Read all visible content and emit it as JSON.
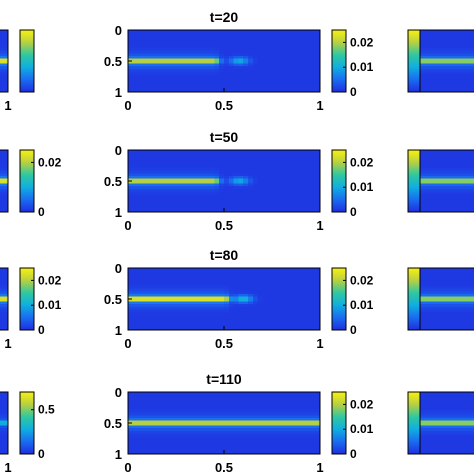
{
  "chart_data": [
    {
      "type": "heatmap",
      "position": "left",
      "colorbar": {
        "ticks": [],
        "range": [
          0,
          0.025
        ]
      },
      "x_ticks": [
        "1"
      ],
      "y_ticks": [],
      "field": {
        "band_center": 0.5,
        "front_x": 1.0,
        "peak": 0.025
      }
    },
    {
      "type": "heatmap",
      "title": "t=20",
      "x_ticks": [
        "0",
        "0.5",
        "1"
      ],
      "y_ticks": [
        "0",
        "0.5",
        "1"
      ],
      "xlim": [
        0,
        1
      ],
      "ylim": [
        0,
        1
      ],
      "colorbar": {
        "ticks": [
          "0.02",
          "0.01",
          "0"
        ],
        "tick_values": [
          0.02,
          0.01,
          0
        ],
        "range": [
          0,
          0.025
        ]
      },
      "field": {
        "band_center": 0.5,
        "front_x": 0.45,
        "blob_x": 0.58,
        "peak": 0.022
      }
    },
    {
      "type": "heatmap",
      "position": "right",
      "colorbar": {
        "ticks": [],
        "range": [
          0,
          0.025
        ]
      },
      "x_ticks": [],
      "y_ticks": [],
      "field": {
        "band_center": 0.5,
        "front_x": 0.3,
        "peak": 0.02
      }
    },
    {
      "type": "heatmap",
      "position": "left",
      "colorbar": {
        "ticks": [
          "0.02",
          "0"
        ],
        "tick_values": [
          0.02,
          0
        ],
        "range": [
          0,
          0.025
        ]
      },
      "x_ticks": [],
      "y_ticks": [],
      "field": {
        "band_center": 0.5,
        "front_x": 1.0,
        "peak": 0.025
      }
    },
    {
      "type": "heatmap",
      "title": "t=50",
      "x_ticks": [
        "0",
        "0.5",
        "1"
      ],
      "y_ticks": [
        "0",
        "0.5",
        "1"
      ],
      "xlim": [
        0,
        1
      ],
      "ylim": [
        0,
        1
      ],
      "colorbar": {
        "ticks": [
          "0.02",
          "0.01",
          "0"
        ],
        "tick_values": [
          0.02,
          0.01,
          0
        ],
        "range": [
          0,
          0.025
        ]
      },
      "field": {
        "band_center": 0.5,
        "front_x": 0.45,
        "blob_x": 0.58,
        "peak": 0.022
      }
    },
    {
      "type": "heatmap",
      "position": "right",
      "colorbar": {
        "ticks": [],
        "range": [
          0,
          0.025
        ]
      },
      "x_ticks": [],
      "y_ticks": [],
      "field": {
        "band_center": 0.5,
        "front_x": 0.3,
        "peak": 0.02
      }
    },
    {
      "type": "heatmap",
      "position": "left",
      "colorbar": {
        "ticks": [
          "0.02",
          "0.01",
          "0"
        ],
        "tick_values": [
          0.02,
          0.01,
          0
        ],
        "range": [
          0,
          0.025
        ]
      },
      "x_ticks": [
        "1"
      ],
      "y_ticks": [],
      "field": {
        "band_center": 0.5,
        "front_x": 1.0,
        "peak": 0.025
      }
    },
    {
      "type": "heatmap",
      "title": "t=80",
      "x_ticks": [
        "0",
        "0.5",
        "1"
      ],
      "y_ticks": [
        "0",
        "0.5",
        "1"
      ],
      "xlim": [
        0,
        1
      ],
      "ylim": [
        0,
        1
      ],
      "colorbar": {
        "ticks": [
          "0.02",
          "0.01",
          "0"
        ],
        "tick_values": [
          0.02,
          0.01,
          0
        ],
        "range": [
          0,
          0.025
        ]
      },
      "field": {
        "band_center": 0.5,
        "front_x": 0.5,
        "blob_x": 0.6,
        "peak": 0.025
      }
    },
    {
      "type": "heatmap",
      "position": "right",
      "colorbar": {
        "ticks": [],
        "range": [
          0,
          0.025
        ]
      },
      "x_ticks": [],
      "y_ticks": [],
      "field": {
        "band_center": 0.5,
        "front_x": 0.3,
        "peak": 0.02
      }
    },
    {
      "type": "heatmap",
      "position": "left",
      "colorbar": {
        "ticks": [
          "0.5",
          "0"
        ],
        "tick_values": [
          0.5,
          0
        ],
        "range": [
          0,
          0.7
        ]
      },
      "x_ticks": [
        "1"
      ],
      "y_ticks": [],
      "field": {
        "band_center": 0.5,
        "front_x": 1.0,
        "peak": 0.3
      }
    },
    {
      "type": "heatmap",
      "title": "t=110",
      "x_ticks": [
        "0",
        "0.5",
        "1"
      ],
      "y_ticks": [
        "0",
        "0.5",
        "1"
      ],
      "xlim": [
        0,
        1
      ],
      "ylim": [
        0,
        1
      ],
      "colorbar": {
        "ticks": [
          "0.02",
          "0.01",
          "0"
        ],
        "tick_values": [
          0.02,
          0.01,
          0
        ],
        "range": [
          0,
          0.025
        ]
      },
      "field": {
        "band_center": 0.5,
        "front_x": 1.0,
        "peak": 0.022
      }
    },
    {
      "type": "heatmap",
      "position": "right",
      "colorbar": {
        "ticks": [],
        "range": [
          0,
          0.025
        ]
      },
      "x_ticks": [],
      "y_ticks": [],
      "field": {
        "band_center": 0.5,
        "front_x": 0.3,
        "peak": 0.02
      }
    }
  ]
}
